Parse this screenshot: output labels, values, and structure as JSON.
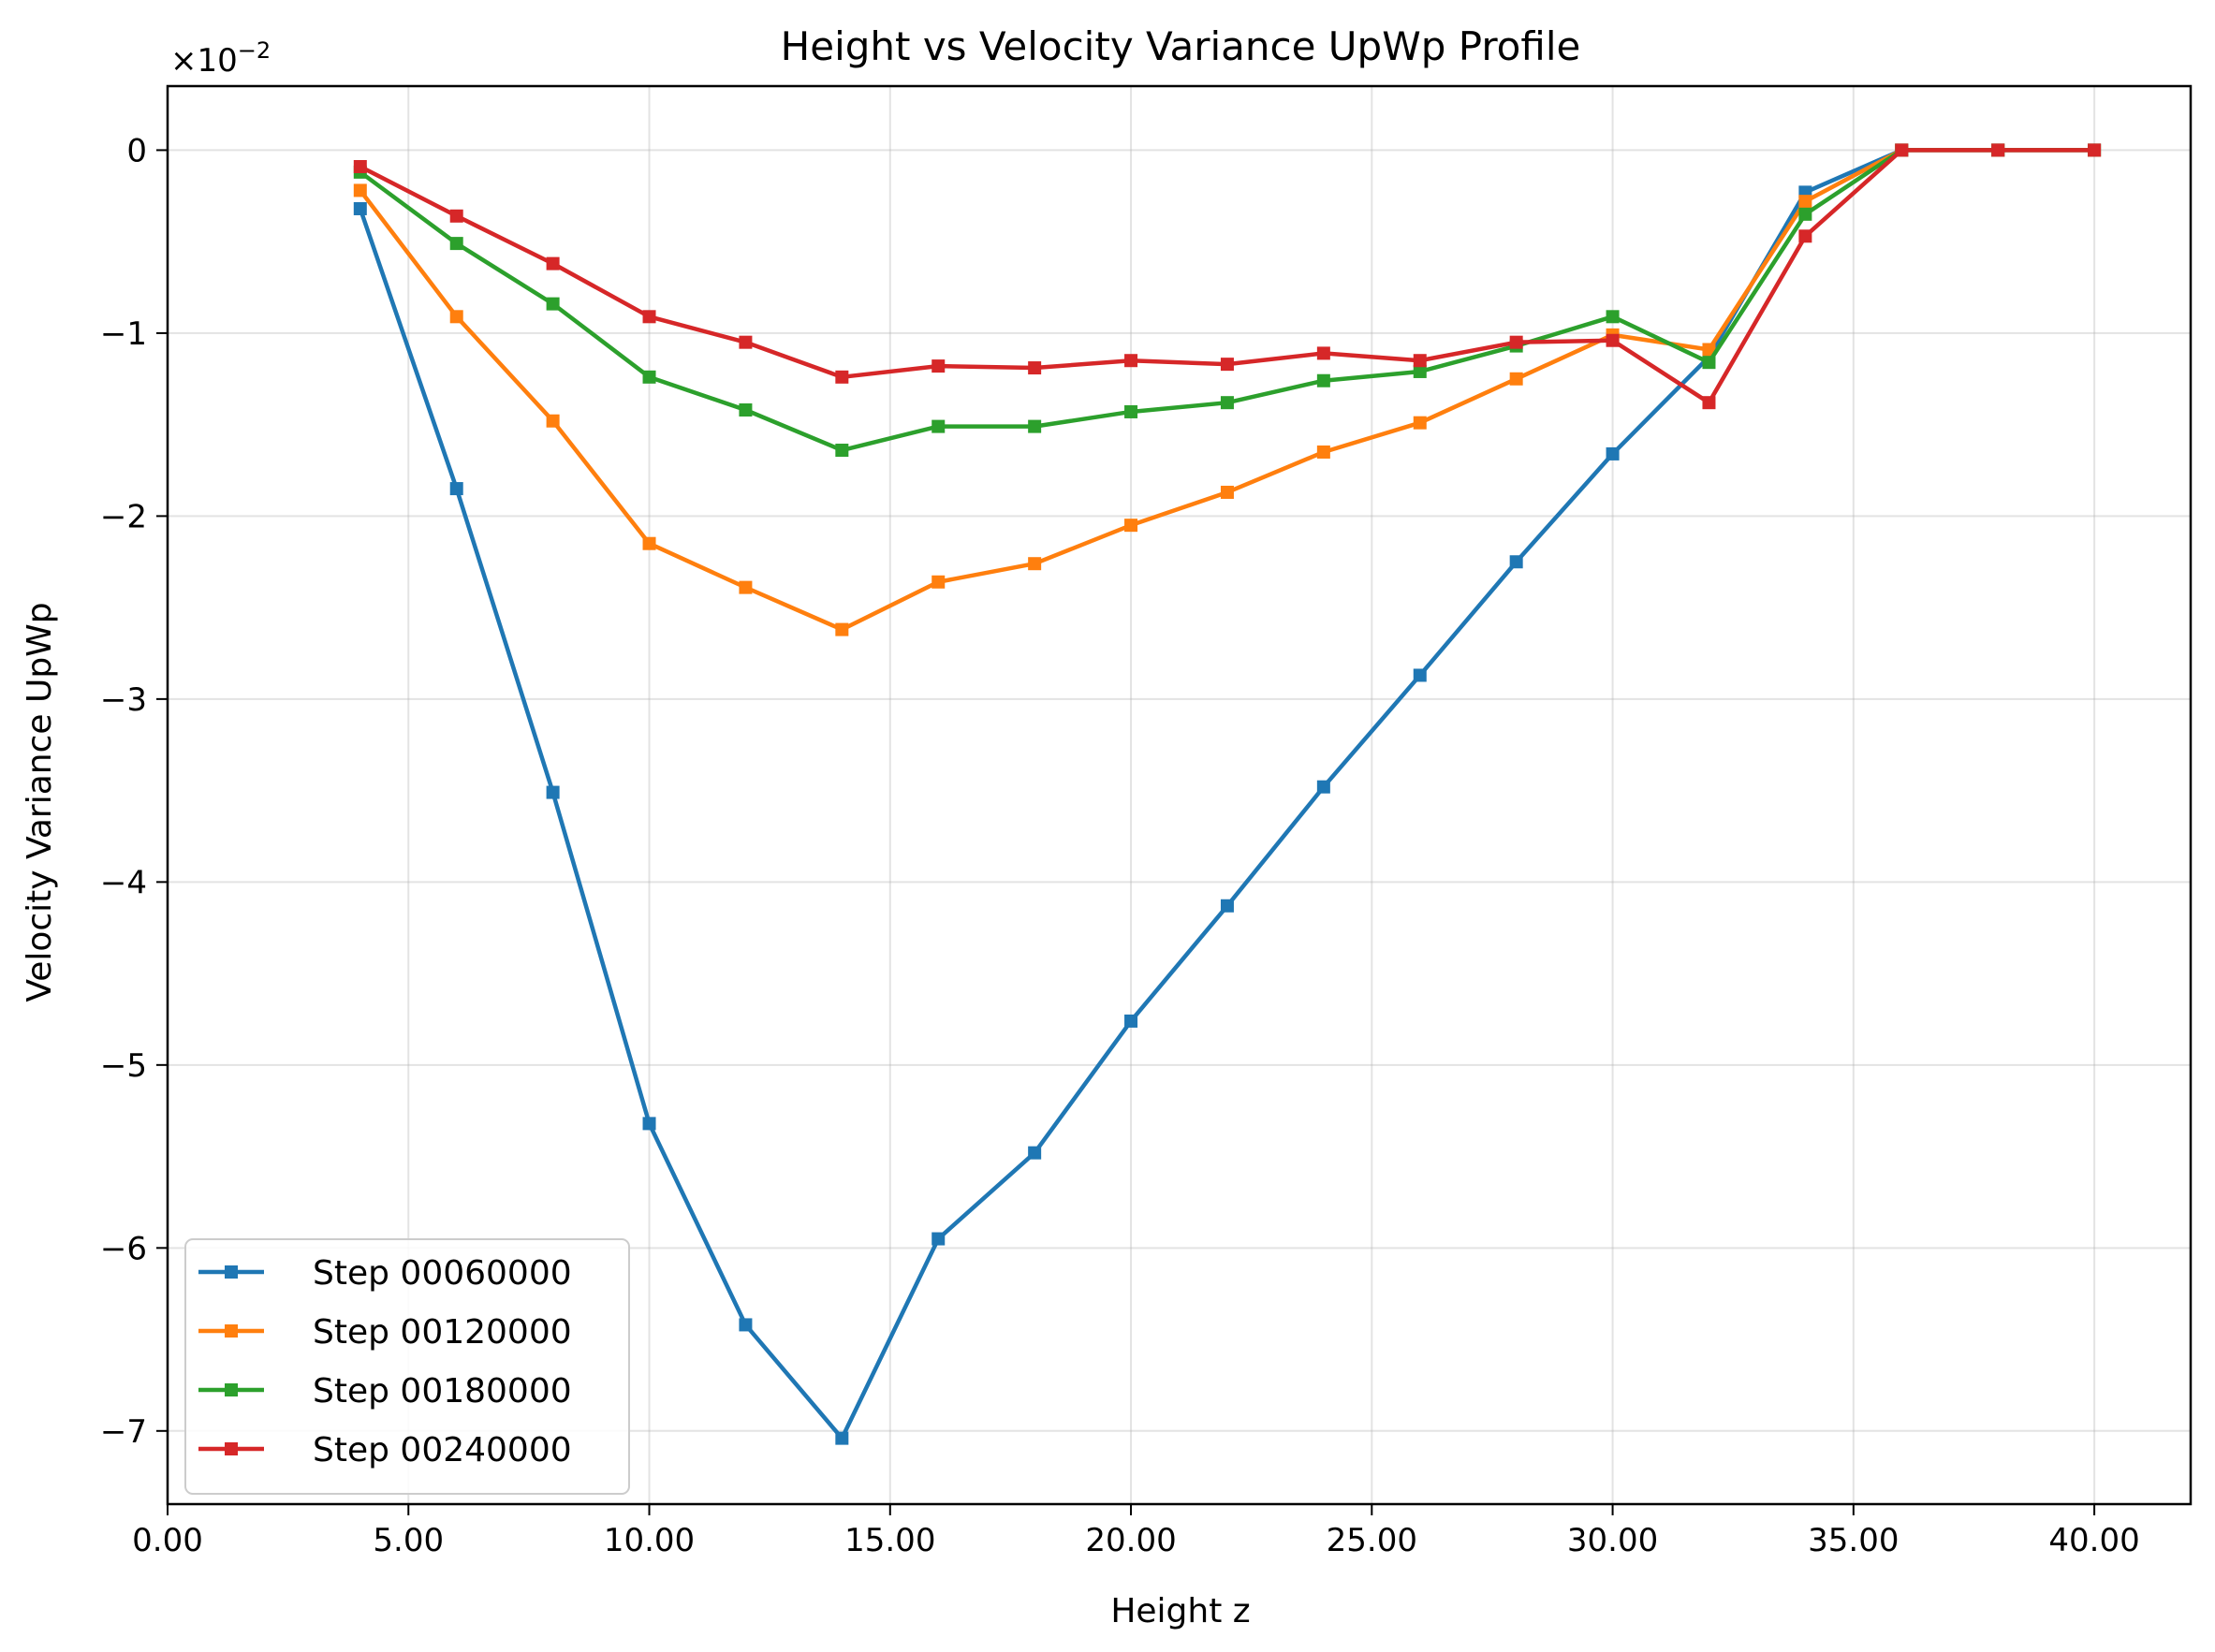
{
  "chart_data": {
    "type": "line",
    "title": "Height vs Velocity Variance UpWp Profile",
    "xlabel": "Height z",
    "ylabel": "Velocity Variance UpWp",
    "offset_label_prefix": "×10",
    "offset_label_exponent": "−2",
    "xlim": [
      0,
      42
    ],
    "ylim": [
      -7.4,
      0.35
    ],
    "x_ticks": [
      0,
      5,
      10,
      15,
      20,
      25,
      30,
      35,
      40
    ],
    "x_tick_labels": [
      "0.00",
      "5.00",
      "10.00",
      "15.00",
      "20.00",
      "25.00",
      "30.00",
      "35.00",
      "40.00"
    ],
    "y_ticks": [
      0,
      -1,
      -2,
      -3,
      -4,
      -5,
      -6,
      -7
    ],
    "y_tick_labels": [
      "0",
      "−1",
      "−2",
      "−3",
      "−4",
      "−5",
      "−6",
      "−7"
    ],
    "grid": true,
    "legend_position": "lower-left",
    "series": [
      {
        "name": "Step 00060000",
        "color": "#1f77b4",
        "x": [
          4,
          6,
          8,
          10,
          12,
          14,
          16,
          18,
          20,
          22,
          24,
          26,
          28,
          30,
          32,
          34,
          36,
          38,
          40
        ],
        "values": [
          -0.32,
          -1.85,
          -3.51,
          -5.32,
          -6.42,
          -7.04,
          -5.95,
          -5.48,
          -4.76,
          -4.13,
          -3.48,
          -2.87,
          -2.25,
          -1.66,
          -1.13,
          -0.23,
          0.0,
          0.0,
          0.0
        ]
      },
      {
        "name": "Step 00120000",
        "color": "#ff7f0e",
        "x": [
          4,
          6,
          8,
          10,
          12,
          14,
          16,
          18,
          20,
          22,
          24,
          26,
          28,
          30,
          32,
          34,
          36,
          38,
          40
        ],
        "values": [
          -0.22,
          -0.91,
          -1.48,
          -2.15,
          -2.39,
          -2.62,
          -2.36,
          -2.26,
          -2.05,
          -1.87,
          -1.65,
          -1.49,
          -1.25,
          -1.01,
          -1.09,
          -0.28,
          0.0,
          0.0,
          0.0
        ]
      },
      {
        "name": "Step 00180000",
        "color": "#2ca02c",
        "x": [
          4,
          6,
          8,
          10,
          12,
          14,
          16,
          18,
          20,
          22,
          24,
          26,
          28,
          30,
          32,
          34,
          36,
          38,
          40
        ],
        "values": [
          -0.12,
          -0.51,
          -0.84,
          -1.24,
          -1.42,
          -1.64,
          -1.51,
          -1.51,
          -1.43,
          -1.38,
          -1.26,
          -1.21,
          -1.07,
          -0.91,
          -1.16,
          -0.35,
          0.0,
          0.0,
          0.0
        ]
      },
      {
        "name": "Step 00240000",
        "color": "#d62728",
        "x": [
          4,
          6,
          8,
          10,
          12,
          14,
          16,
          18,
          20,
          22,
          24,
          26,
          28,
          30,
          32,
          34,
          36,
          38,
          40
        ],
        "values": [
          -0.09,
          -0.36,
          -0.62,
          -0.91,
          -1.05,
          -1.24,
          -1.18,
          -1.19,
          -1.15,
          -1.17,
          -1.11,
          -1.15,
          -1.05,
          -1.04,
          -1.38,
          -0.47,
          0.0,
          0.0,
          0.0
        ]
      }
    ]
  }
}
